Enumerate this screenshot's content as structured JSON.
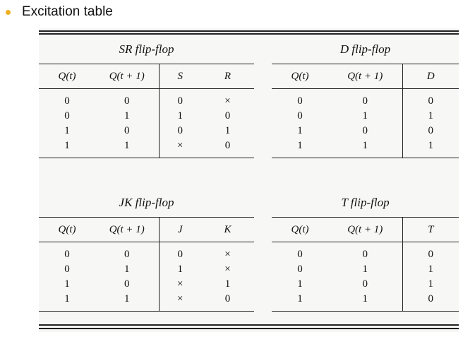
{
  "slide": {
    "title": "Excitation table"
  },
  "tables": {
    "sr": {
      "caption": "SR flip-flop",
      "headers": [
        "Q(t)",
        "Q(t + 1)",
        "S",
        "R"
      ],
      "rows": [
        [
          "0",
          "0",
          "0",
          "×"
        ],
        [
          "0",
          "1",
          "1",
          "0"
        ],
        [
          "1",
          "0",
          "0",
          "1"
        ],
        [
          "1",
          "1",
          "×",
          "0"
        ]
      ]
    },
    "d": {
      "caption": "D flip-flop",
      "headers": [
        "Q(t)",
        "Q(t + 1)",
        "D"
      ],
      "rows": [
        [
          "0",
          "0",
          "0"
        ],
        [
          "0",
          "1",
          "1"
        ],
        [
          "1",
          "0",
          "0"
        ],
        [
          "1",
          "1",
          "1"
        ]
      ]
    },
    "jk": {
      "caption": "JK flip-flop",
      "headers": [
        "Q(t)",
        "Q(t + 1)",
        "J",
        "K"
      ],
      "rows": [
        [
          "0",
          "0",
          "0",
          "×"
        ],
        [
          "0",
          "1",
          "1",
          "×"
        ],
        [
          "1",
          "0",
          "×",
          "1"
        ],
        [
          "1",
          "1",
          "×",
          "0"
        ]
      ]
    },
    "t": {
      "caption": "T flip-flop",
      "headers": [
        "Q(t)",
        "Q(t + 1)",
        "T"
      ],
      "rows": [
        [
          "0",
          "0",
          "0"
        ],
        [
          "0",
          "1",
          "1"
        ],
        [
          "1",
          "0",
          "1"
        ],
        [
          "1",
          "1",
          "0"
        ]
      ]
    }
  }
}
